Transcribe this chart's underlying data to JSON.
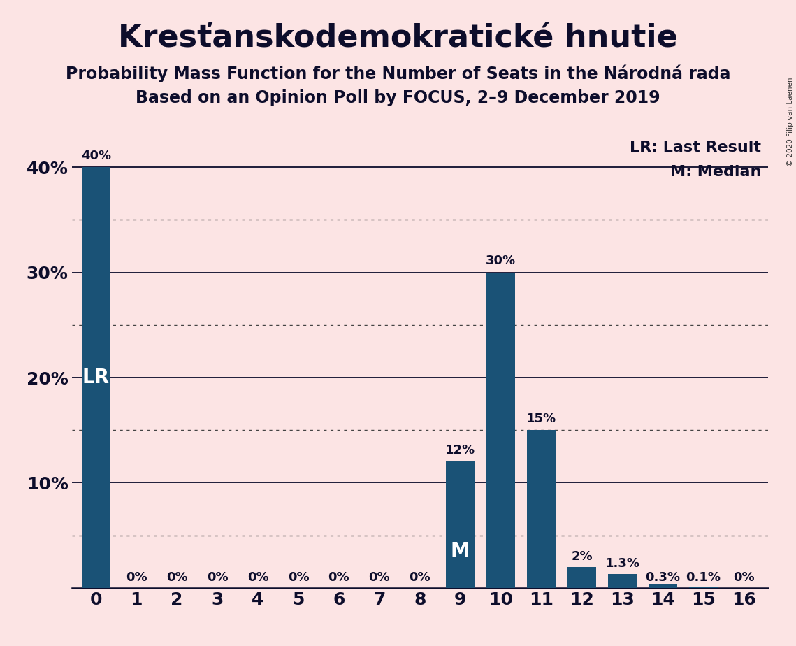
{
  "title": "Kresťanskodemokratické hnutie",
  "subtitle1": "Probability Mass Function for the Number of Seats in the Národná rada",
  "subtitle2": "Based on an Opinion Poll by FOCUS, 2–9 December 2019",
  "copyright": "© 2020 Filip van Laenen",
  "categories": [
    0,
    1,
    2,
    3,
    4,
    5,
    6,
    7,
    8,
    9,
    10,
    11,
    12,
    13,
    14,
    15,
    16
  ],
  "values": [
    40,
    0,
    0,
    0,
    0,
    0,
    0,
    0,
    0,
    12,
    30,
    15,
    2,
    1.3,
    0.3,
    0.1,
    0
  ],
  "bar_color": "#1a5276",
  "background_color": "#fce4e4",
  "bar_labels": [
    "40%",
    "0%",
    "0%",
    "0%",
    "0%",
    "0%",
    "0%",
    "0%",
    "0%",
    "12%",
    "30%",
    "15%",
    "2%",
    "1.3%",
    "0.3%",
    "0.1%",
    "0%"
  ],
  "lr_bar": 0,
  "median_bar": 9,
  "ylim": [
    0,
    43
  ],
  "yticks": [
    0,
    10,
    20,
    30,
    40
  ],
  "ytick_labels": [
    "",
    "10%",
    "20%",
    "30%",
    "40%"
  ],
  "solid_gridlines": [
    10,
    20,
    30,
    40
  ],
  "dotted_gridlines": [
    5,
    15,
    25,
    35
  ],
  "legend_lr": "LR: Last Result",
  "legend_m": "M: Median",
  "lr_label": "LR",
  "median_label": "M",
  "title_fontsize": 32,
  "subtitle_fontsize": 17,
  "axis_fontsize": 18,
  "bar_label_fontsize": 13,
  "legend_fontsize": 16,
  "annotation_fontsize": 20
}
